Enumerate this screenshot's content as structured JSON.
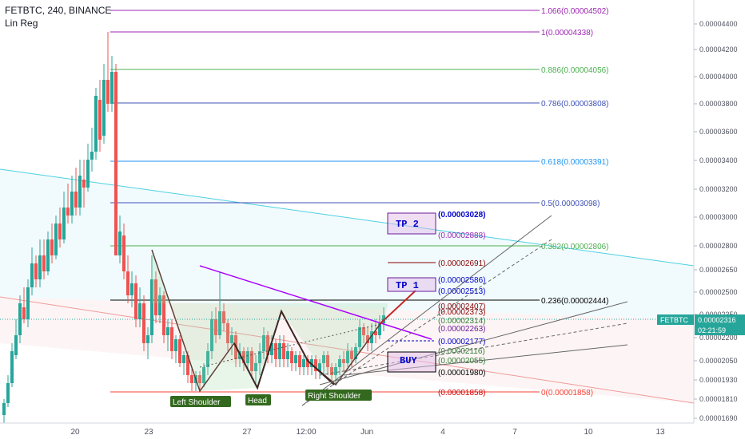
{
  "header": {
    "title": "FETBTC, 240, BINANCE",
    "indicator": "Lin Reg"
  },
  "colors": {
    "up": "#26a69a",
    "down": "#ef5350",
    "fib": "#2962ff"
  },
  "price_axis": {
    "ticks": [
      "0.00004400",
      "0.00004200",
      "0.00004000",
      "0.00003800",
      "0.00003600",
      "0.00003400",
      "0.00003200",
      "0.00003000",
      "0.00002800",
      "0.00002650",
      "0.00002500",
      "0.00002350",
      "0.00002200",
      "0.00002050",
      "0.00001930",
      "0.00001810",
      "0.00001690"
    ],
    "current_symbol": "FETBTC",
    "current_price": "0.00002316",
    "countdown": "02:21:59"
  },
  "time_axis": {
    "labels": [
      "20",
      "23",
      "27",
      "12:00",
      "Jun",
      "4",
      "7",
      "10",
      "13"
    ]
  },
  "fib_levels": [
    {
      "label": "1.066(0.00004502)",
      "color": "#9c27b0"
    },
    {
      "label": "1(0.00004338)",
      "color": "#9c27b0"
    },
    {
      "label": "0.886(0.00004056)",
      "color": "#4caf50"
    },
    {
      "label": "0.786(0.00003808)",
      "color": "#3f51b5"
    },
    {
      "label": "0.618(0.00003391)",
      "color": "#2196f3"
    },
    {
      "label": "0.5(0.00003098)",
      "color": "#3f51b5"
    },
    {
      "label": "0.382(0.00002806)",
      "color": "#4caf50"
    },
    {
      "label": "0.236(0.00002444)",
      "color": "#000000"
    },
    {
      "label": "0(0.00001858)",
      "color": "#f44336"
    }
  ],
  "levels": [
    {
      "label": "(0.00003028)",
      "color": "#0000cc"
    },
    {
      "label": "(0.00002888)",
      "color": "#9c27b0"
    },
    {
      "label": "(0.00002691)",
      "color": "#8b0000"
    },
    {
      "label": "(0.00002586)",
      "color": "#0000cc"
    },
    {
      "label": "(0.00002513)",
      "color": "#0000cc"
    },
    {
      "label": "(0.00002407)",
      "color": "#8b0000"
    },
    {
      "label": "(0.00002373)",
      "color": "#8b0000"
    },
    {
      "label": "(0.00002314)",
      "color": "#2e7d32"
    },
    {
      "label": "(0.00002263)",
      "color": "#6a1b9a"
    },
    {
      "label": "(0.00002177)",
      "color": "#0000cc"
    },
    {
      "label": "(0.00002116)",
      "color": "#2e7d32"
    },
    {
      "label": "(0.00002055)",
      "color": "#2e7d32"
    },
    {
      "label": "(0.00001980)",
      "color": "#000000"
    },
    {
      "label": "(0.00001858)",
      "color": "#d50000"
    }
  ],
  "boxes": {
    "tp2": "TP 2",
    "tp1": "TP 1",
    "buy": "BUY"
  },
  "pattern_labels": {
    "left_shoulder": "Left Shoulder",
    "head": "Head",
    "right_shoulder": "Right Shoulder"
  }
}
